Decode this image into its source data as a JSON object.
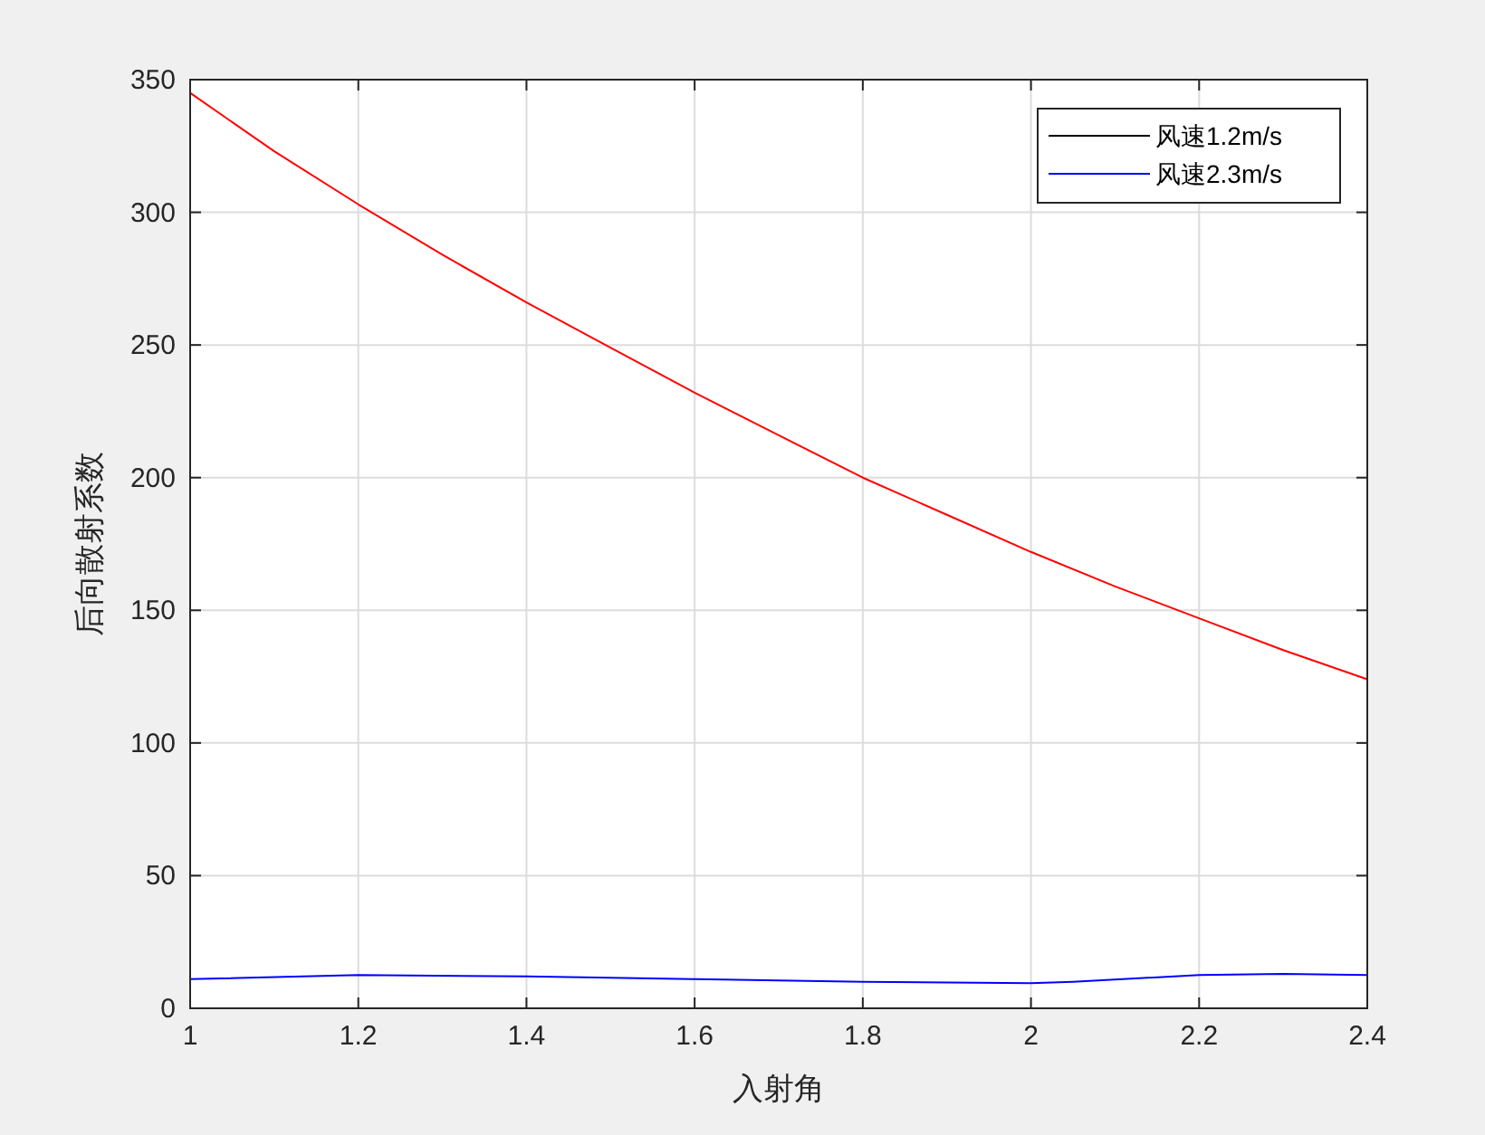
{
  "chart_data": {
    "type": "line",
    "xlabel": "入射角",
    "ylabel": "后向散射系数",
    "xlim": [
      1,
      2.4
    ],
    "ylim": [
      0,
      350
    ],
    "xticks": [
      1,
      1.2,
      1.4,
      1.6,
      1.8,
      2,
      2.2,
      2.4
    ],
    "yticks": [
      0,
      50,
      100,
      150,
      200,
      250,
      300,
      350
    ],
    "grid": true,
    "legend": "top right",
    "series": [
      {
        "name": "风速1.2m/s",
        "color": "#000000"
      },
      {
        "name": "风速2.3m/s",
        "color": "#0000ff",
        "x": [
          1,
          1.2,
          1.4,
          1.6,
          1.8,
          2,
          2.05,
          2.2,
          2.3,
          2.4
        ],
        "values": [
          11,
          12.5,
          12,
          11,
          10,
          9.5,
          10,
          12.5,
          13,
          12.5
        ]
      },
      {
        "color": "#ff0000",
        "x": [
          1,
          1.1,
          1.2,
          1.3,
          1.4,
          1.5,
          1.6,
          1.7,
          1.8,
          1.9,
          2,
          2.1,
          2.2,
          2.3,
          2.4
        ],
        "values": [
          345,
          323,
          303,
          284,
          266,
          249,
          232,
          216,
          200,
          186,
          172,
          159,
          147,
          135,
          124
        ]
      }
    ]
  }
}
